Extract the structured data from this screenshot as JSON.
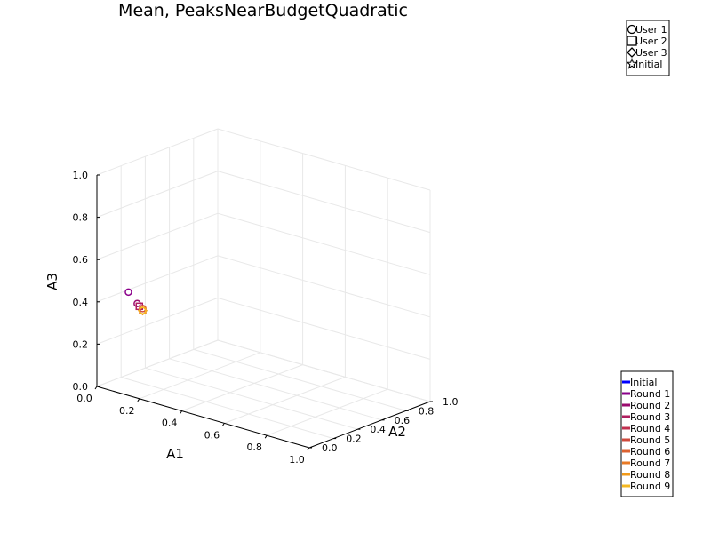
{
  "chart_data": {
    "type": "scatter",
    "title": "Mean, PeaksNearBudgetQuadratic",
    "xlabel": "A1",
    "ylabel": "A2",
    "zlabel": "A3",
    "xlim": [
      0,
      1
    ],
    "ylim": [
      0,
      1
    ],
    "zlim": [
      0,
      1
    ],
    "x_ticks": [
      "0.0",
      "0.2",
      "0.4",
      "0.6",
      "0.8",
      "1.0"
    ],
    "y_ticks": [
      "0.0",
      "0.2",
      "0.4",
      "0.6",
      "0.8",
      "1.0"
    ],
    "z_ticks": [
      "0.0",
      "0.2",
      "0.4",
      "0.6",
      "0.8",
      "1.0"
    ],
    "grid": true,
    "marker_legend": {
      "placement": "top-right",
      "items": [
        {
          "label": "User 1",
          "marker": "circle"
        },
        {
          "label": "User 2",
          "marker": "square"
        },
        {
          "label": "User 3",
          "marker": "diamond"
        },
        {
          "label": "Initial",
          "marker": "star"
        }
      ]
    },
    "series_legend": {
      "placement": "bottom-right",
      "items": [
        {
          "label": "Initial",
          "color": "#0000ff"
        },
        {
          "label": "Round 1",
          "color": "#8b008b"
        },
        {
          "label": "Round 2",
          "color": "#9b0a6e"
        },
        {
          "label": "Round 3",
          "color": "#b01e5f"
        },
        {
          "label": "Round 4",
          "color": "#c2304f"
        },
        {
          "label": "Round 5",
          "color": "#cf4a3c"
        },
        {
          "label": "Round 6",
          "color": "#dc6230"
        },
        {
          "label": "Round 7",
          "color": "#e87a25"
        },
        {
          "label": "Round 8",
          "color": "#f29a18"
        },
        {
          "label": "Round 9",
          "color": "#f5b820"
        }
      ]
    },
    "points": [
      {
        "round": "Round 1",
        "user": "User 1",
        "x": 0.12,
        "y": 0.05,
        "z": 0.47,
        "color": "#8b008b"
      },
      {
        "round": "Round 2",
        "user": "User 1",
        "x": 0.15,
        "y": 0.07,
        "z": 0.42,
        "color": "#9b0a6e"
      },
      {
        "round": "Round 3",
        "user": "User 2",
        "x": 0.16,
        "y": 0.07,
        "z": 0.41,
        "color": "#b01e5f"
      },
      {
        "round": "Round 5",
        "user": "User 1",
        "x": 0.17,
        "y": 0.08,
        "z": 0.4,
        "color": "#cf4a3c"
      },
      {
        "round": "Round 7",
        "user": "User 2",
        "x": 0.17,
        "y": 0.08,
        "z": 0.39,
        "color": "#e87a25"
      },
      {
        "round": "Round 8",
        "user": "User 3",
        "x": 0.17,
        "y": 0.08,
        "z": 0.39,
        "color": "#f29a18"
      },
      {
        "round": "Round 9",
        "user": "User 1",
        "x": 0.17,
        "y": 0.08,
        "z": 0.39,
        "color": "#f5b820"
      }
    ]
  }
}
